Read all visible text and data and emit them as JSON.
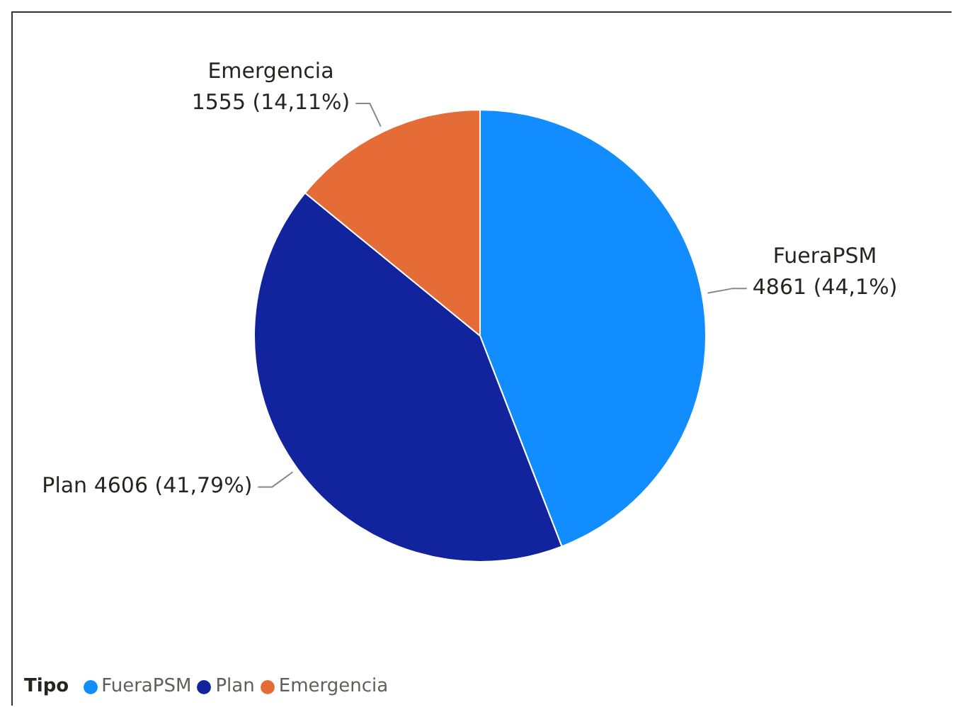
{
  "chart_data": {
    "type": "pie",
    "legend_title": "Tipo",
    "legend": "bottom left",
    "categories": [
      "FueraPSM",
      "Plan",
      "Emergencia"
    ],
    "values": [
      4861,
      4606,
      1555
    ],
    "colors": [
      "#118dff",
      "#12239e",
      "#e66c37"
    ],
    "value_labels": [
      "4861 (44,1%)",
      "4606 (41,79%)",
      "1555 (14,11%)"
    ]
  }
}
